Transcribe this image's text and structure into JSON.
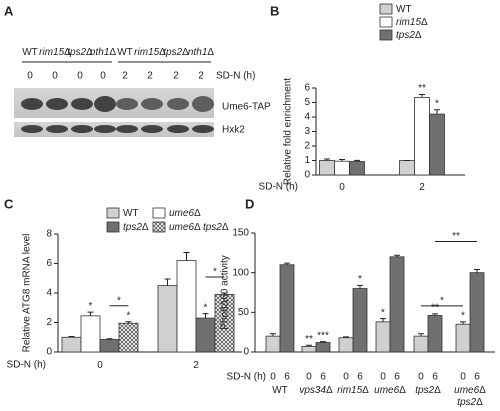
{
  "blot": {
    "panel": "A",
    "strains": [
      "WT",
      "rim15Δ",
      "tps2Δ",
      "nth1Δ",
      "WT",
      "rim15Δ",
      "tps2Δ",
      "nth1Δ"
    ],
    "times": [
      "0",
      "0",
      "0",
      "0",
      "2",
      "2",
      "2",
      "2"
    ],
    "time_label": "SD-N (h)",
    "bands": [
      "Ume6-TAP",
      "Hxk2"
    ]
  },
  "chart_data": [
    {
      "type": "bar",
      "panel": "B",
      "ylabel": "Relative fold enrichment",
      "xlabel": "SD-N (h)",
      "categories": [
        "0",
        "2"
      ],
      "ylim": [
        0,
        6
      ],
      "yticks": [
        0,
        1,
        2,
        3,
        4,
        5,
        6
      ],
      "legend": true,
      "series": [
        {
          "name": "WT",
          "color": "#d0d0d0",
          "values": [
            1,
            1
          ],
          "errors": [
            0.1,
            0
          ],
          "significance": [
            null,
            null
          ]
        },
        {
          "name": "rim15Δ",
          "color": "#ffffff",
          "values": [
            0.95,
            5.35
          ],
          "errors": [
            0.12,
            0.2
          ],
          "significance": [
            null,
            "**"
          ]
        },
        {
          "name": "tps2Δ",
          "color": "#707070",
          "values": [
            0.93,
            4.2
          ],
          "errors": [
            0.08,
            0.3
          ],
          "significance": [
            null,
            "*"
          ]
        }
      ]
    },
    {
      "type": "bar",
      "panel": "C",
      "ylabel": "Relative ATG8 mRNA level",
      "xlabel": "SD-N (h)",
      "categories": [
        "0",
        "2"
      ],
      "ylim": [
        0,
        8
      ],
      "yticks": [
        0,
        2,
        4,
        6,
        8
      ],
      "legend": true,
      "series": [
        {
          "name": "WT",
          "color": "#d0d0d0",
          "values": [
            1,
            4.5
          ],
          "errors": [
            0.05,
            0.45
          ],
          "significance": [
            null,
            null
          ]
        },
        {
          "name": "ume6Δ",
          "color": "#ffffff",
          "values": [
            2.45,
            6.2
          ],
          "errors": [
            0.25,
            0.55
          ],
          "significance": [
            "*",
            null
          ]
        },
        {
          "name": "tps2Δ",
          "color": "#707070",
          "values": [
            0.85,
            2.3
          ],
          "errors": [
            0.05,
            0.3
          ],
          "significance": [
            null,
            "*"
          ]
        },
        {
          "name": "ume6Δ tps2Δ",
          "color": "#ffffff",
          "hatch": true,
          "values": [
            1.95,
            3.9
          ],
          "errors": [
            0.1,
            0.1
          ],
          "significance": [
            "*",
            null
          ]
        }
      ],
      "brackets": [
        {
          "from": [
            0,
            2
          ],
          "to": [
            0,
            3
          ],
          "label": "*"
        },
        {
          "from": [
            1,
            2
          ],
          "to": [
            1,
            3
          ],
          "label": "*"
        }
      ]
    },
    {
      "type": "bar",
      "panel": "D",
      "ylabel": "Pho8Δ60 activity",
      "xlabel": "SD-N (h)",
      "categories": [
        "WT",
        "vps34Δ",
        "rim15Δ",
        "ume6Δ",
        "tps2Δ",
        "ume6Δ tps2Δ"
      ],
      "ylim": [
        0,
        150
      ],
      "yticks": [
        0,
        50,
        100,
        150
      ],
      "legend": false,
      "series": [
        {
          "name": "0",
          "color": "#d0d0d0",
          "values": [
            20,
            7,
            18,
            38,
            20,
            35
          ],
          "errors": [
            3,
            1.5,
            1,
            4,
            3,
            3
          ],
          "significance": [
            null,
            "**",
            null,
            "*",
            null,
            "*"
          ]
        },
        {
          "name": "6",
          "color": "#707070",
          "values": [
            110,
            12,
            80,
            120,
            46,
            100
          ],
          "errors": [
            2,
            1,
            4,
            2,
            2,
            4
          ],
          "significance": [
            null,
            "***",
            "*",
            null,
            "**",
            null
          ]
        }
      ],
      "brackets": [
        {
          "from": [
            4,
            0
          ],
          "to": [
            5,
            0
          ],
          "label": "*"
        },
        {
          "from": [
            4,
            1
          ],
          "to": [
            5,
            1
          ],
          "label": "**"
        }
      ]
    }
  ]
}
